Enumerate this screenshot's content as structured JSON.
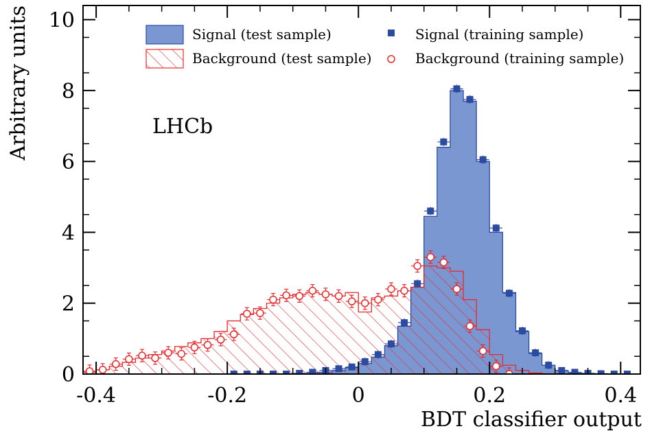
{
  "chart_data": {
    "type": "bar",
    "xlabel": "BDT classifier output",
    "ylabel": "Arbitrary units",
    "experiment_label": "LHCb",
    "xlim": [
      -0.42,
      0.43
    ],
    "ylim": [
      0,
      10.4
    ],
    "xticks": [
      -0.4,
      -0.2,
      0,
      0.2,
      0.4
    ],
    "xtick_labels": [
      "-0.4",
      "-0.2",
      "0",
      "0.2",
      "0.4"
    ],
    "yticks": [
      0,
      2,
      4,
      6,
      8,
      10
    ],
    "ytick_labels": [
      "0",
      "2",
      "4",
      "6",
      "8",
      "10"
    ],
    "bin_edges": [
      -0.42,
      -0.4,
      -0.38,
      -0.36,
      -0.34,
      -0.32,
      -0.3,
      -0.28,
      -0.26,
      -0.24,
      -0.22,
      -0.2,
      -0.18,
      -0.16,
      -0.14,
      -0.12,
      -0.1,
      -0.08,
      -0.06,
      -0.04,
      -0.02,
      0.0,
      0.02,
      0.04,
      0.06,
      0.08,
      0.1,
      0.12,
      0.14,
      0.16,
      0.18,
      0.2,
      0.22,
      0.24,
      0.26,
      0.28,
      0.3,
      0.32,
      0.34,
      0.36,
      0.38,
      0.4,
      0.42
    ],
    "legend": {
      "position": "top",
      "entries": [
        {
          "label": "Signal (test sample)",
          "style": "filled-blue-box"
        },
        {
          "label": "Signal (training sample)",
          "style": "blue-square-marker"
        },
        {
          "label": "Background (test sample)",
          "style": "red-hatched-box"
        },
        {
          "label": "Background (training sample)",
          "style": "red-open-circle-marker"
        }
      ]
    },
    "series": [
      {
        "name": "Signal (test sample)",
        "type": "histogram",
        "values": [
          0,
          0,
          0,
          0,
          0,
          0,
          0,
          0,
          0,
          0,
          0,
          0,
          0,
          0,
          0,
          0,
          0,
          0.02,
          0.05,
          0.1,
          0.18,
          0.3,
          0.48,
          0.8,
          1.35,
          2.45,
          4.45,
          6.4,
          8.0,
          7.7,
          6.0,
          4.0,
          2.3,
          1.2,
          0.58,
          0.25,
          0.1,
          0.04,
          0.02,
          0.01,
          0.0,
          0.0
        ],
        "color": "#7b97d1",
        "edge_color": "#2b4ba0"
      },
      {
        "name": "Background (test sample)",
        "type": "histogram",
        "values": [
          0.05,
          0.12,
          0.22,
          0.33,
          0.45,
          0.55,
          0.65,
          0.78,
          0.88,
          1.0,
          1.2,
          1.5,
          1.68,
          1.85,
          2.0,
          2.15,
          2.25,
          2.3,
          2.25,
          2.2,
          2.3,
          1.75,
          2.15,
          2.2,
          2.35,
          2.45,
          3.05,
          3.0,
          2.9,
          2.1,
          1.25,
          0.55,
          0.25,
          0.1,
          0.03,
          0.01,
          0.0,
          0.0,
          0.0,
          0.0,
          0.0,
          0.0
        ],
        "color": "#e8282c"
      },
      {
        "name": "Signal (training sample)",
        "type": "points",
        "x": [
          -0.19,
          -0.17,
          -0.15,
          -0.13,
          -0.11,
          -0.09,
          -0.07,
          -0.05,
          -0.03,
          -0.01,
          0.01,
          0.03,
          0.05,
          0.07,
          0.09,
          0.11,
          0.13,
          0.15,
          0.17,
          0.19,
          0.21,
          0.23,
          0.25,
          0.27,
          0.29,
          0.31,
          0.33,
          0.35,
          0.37,
          0.39,
          0.41
        ],
        "y": [
          0.0,
          0.0,
          0.0,
          0.0,
          0.0,
          0.02,
          0.05,
          0.1,
          0.15,
          0.2,
          0.35,
          0.55,
          0.85,
          1.45,
          2.55,
          4.6,
          6.55,
          8.05,
          7.75,
          6.05,
          4.12,
          2.28,
          1.22,
          0.6,
          0.25,
          0.1,
          0.05,
          0.02,
          0.01,
          0.0,
          0.0
        ],
        "color": "#2b4ba0"
      },
      {
        "name": "Background (training sample)",
        "type": "points",
        "x": [
          -0.41,
          -0.39,
          -0.37,
          -0.35,
          -0.33,
          -0.31,
          -0.29,
          -0.27,
          -0.25,
          -0.23,
          -0.21,
          -0.19,
          -0.17,
          -0.15,
          -0.13,
          -0.11,
          -0.09,
          -0.07,
          -0.05,
          -0.03,
          -0.01,
          0.01,
          0.03,
          0.05,
          0.07,
          0.09,
          0.11,
          0.13,
          0.15,
          0.17,
          0.19,
          0.21,
          0.23
        ],
        "y": [
          0.08,
          0.12,
          0.28,
          0.42,
          0.52,
          0.45,
          0.6,
          0.57,
          0.75,
          0.82,
          0.97,
          1.12,
          1.7,
          1.72,
          2.1,
          2.22,
          2.2,
          2.35,
          2.25,
          2.2,
          2.05,
          2.0,
          2.1,
          2.4,
          2.35,
          3.05,
          3.3,
          3.15,
          2.4,
          1.35,
          0.65,
          0.22,
          0.0
        ],
        "color": "#e8282c"
      }
    ]
  }
}
